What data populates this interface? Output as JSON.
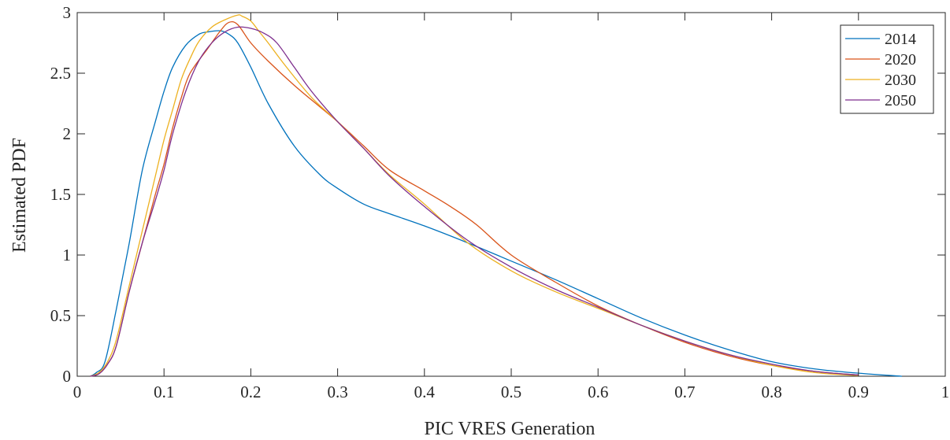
{
  "chart_data": {
    "type": "line",
    "title": "",
    "xlabel": "PIC VRES Generation",
    "ylabel": "Estimated PDF",
    "xlim": [
      0,
      1
    ],
    "ylim": [
      0,
      3
    ],
    "xticks": [
      0,
      0.1,
      0.2,
      0.3,
      0.4,
      0.5,
      0.6,
      0.7,
      0.8,
      0.9,
      1
    ],
    "xtick_labels": [
      "0",
      "0.1",
      "0.2",
      "0.3",
      "0.4",
      "0.5",
      "0.6",
      "0.7",
      "0.8",
      "0.9",
      "1"
    ],
    "yticks": [
      0,
      0.5,
      1,
      1.5,
      2,
      2.5,
      3
    ],
    "ytick_labels": [
      "0",
      "0.5",
      "1",
      "1.5",
      "2",
      "2.5",
      "3"
    ],
    "grid": false,
    "legend_position": "top-right",
    "series": [
      {
        "name": "2014",
        "color": "#0072BD",
        "x": [
          0.015,
          0.022,
          0.032,
          0.045,
          0.06,
          0.075,
          0.09,
          0.1,
          0.11,
          0.125,
          0.14,
          0.15,
          0.165,
          0.175,
          0.185,
          0.2,
          0.22,
          0.25,
          0.28,
          0.3,
          0.33,
          0.36,
          0.4,
          0.45,
          0.5,
          0.55,
          0.6,
          0.65,
          0.7,
          0.75,
          0.8,
          0.85,
          0.9,
          0.95
        ],
        "y": [
          0.0,
          0.03,
          0.12,
          0.55,
          1.1,
          1.7,
          2.1,
          2.35,
          2.55,
          2.73,
          2.82,
          2.84,
          2.85,
          2.82,
          2.75,
          2.55,
          2.25,
          1.9,
          1.66,
          1.55,
          1.42,
          1.34,
          1.24,
          1.1,
          0.95,
          0.8,
          0.64,
          0.48,
          0.34,
          0.22,
          0.12,
          0.06,
          0.025,
          0.0
        ]
      },
      {
        "name": "2020",
        "color": "#D95319",
        "x": [
          0.015,
          0.025,
          0.035,
          0.045,
          0.06,
          0.075,
          0.09,
          0.1,
          0.11,
          0.12,
          0.13,
          0.15,
          0.165,
          0.175,
          0.185,
          0.2,
          0.22,
          0.25,
          0.28,
          0.3,
          0.33,
          0.36,
          0.4,
          0.43,
          0.46,
          0.5,
          0.55,
          0.6,
          0.65,
          0.7,
          0.75,
          0.8,
          0.85,
          0.9
        ],
        "y": [
          0.0,
          0.02,
          0.1,
          0.25,
          0.7,
          1.1,
          1.5,
          1.75,
          2.05,
          2.3,
          2.5,
          2.7,
          2.85,
          2.92,
          2.9,
          2.75,
          2.6,
          2.4,
          2.22,
          2.1,
          1.9,
          1.7,
          1.53,
          1.4,
          1.25,
          1.0,
          0.78,
          0.58,
          0.42,
          0.28,
          0.17,
          0.09,
          0.04,
          0.01
        ]
      },
      {
        "name": "2030",
        "color": "#EDB120",
        "x": [
          0.015,
          0.025,
          0.035,
          0.045,
          0.06,
          0.075,
          0.09,
          0.1,
          0.11,
          0.12,
          0.13,
          0.14,
          0.155,
          0.17,
          0.185,
          0.19,
          0.2,
          0.21,
          0.22,
          0.24,
          0.27,
          0.3,
          0.33,
          0.36,
          0.4,
          0.45,
          0.5,
          0.55,
          0.6,
          0.65,
          0.7,
          0.75,
          0.8,
          0.85,
          0.9
        ],
        "y": [
          0.0,
          0.03,
          0.12,
          0.3,
          0.75,
          1.2,
          1.65,
          1.95,
          2.2,
          2.45,
          2.62,
          2.76,
          2.88,
          2.94,
          2.98,
          2.97,
          2.93,
          2.84,
          2.75,
          2.56,
          2.3,
          2.1,
          1.88,
          1.66,
          1.42,
          1.1,
          0.87,
          0.7,
          0.56,
          0.42,
          0.29,
          0.18,
          0.09,
          0.03,
          0.005
        ]
      },
      {
        "name": "2050",
        "color": "#7E2F8E",
        "x": [
          0.015,
          0.025,
          0.035,
          0.045,
          0.06,
          0.075,
          0.09,
          0.1,
          0.11,
          0.125,
          0.14,
          0.155,
          0.17,
          0.185,
          0.2,
          0.215,
          0.23,
          0.25,
          0.27,
          0.3,
          0.33,
          0.36,
          0.4,
          0.45,
          0.5,
          0.55,
          0.6,
          0.65,
          0.7,
          0.75,
          0.8,
          0.85,
          0.9
        ],
        "y": [
          0.0,
          0.02,
          0.1,
          0.25,
          0.7,
          1.1,
          1.45,
          1.7,
          2.0,
          2.35,
          2.6,
          2.75,
          2.84,
          2.88,
          2.87,
          2.83,
          2.75,
          2.55,
          2.35,
          2.1,
          1.88,
          1.65,
          1.4,
          1.12,
          0.9,
          0.72,
          0.57,
          0.42,
          0.29,
          0.18,
          0.1,
          0.04,
          0.01
        ]
      }
    ]
  }
}
